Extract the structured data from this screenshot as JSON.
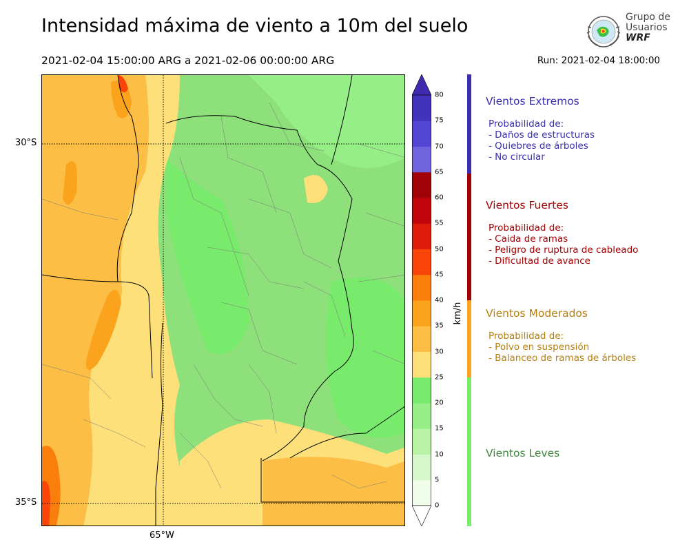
{
  "header": {
    "title": "Intensidad máxima de viento a 10m del suelo",
    "period": "2021-02-04 15:00:00 ARG  a  2021-02-06 00:00:00 ARG",
    "run": "Run: 2021-02-04 18:00:00"
  },
  "logo": {
    "line1": "Grupo de",
    "line2": "Usuarios",
    "line3": "WRF"
  },
  "map": {
    "lat_labels": [
      "30°S",
      "35°S"
    ],
    "lon_labels": [
      "65°W"
    ]
  },
  "colorbar": {
    "unit": "km/h",
    "ticks": [
      "0",
      "5",
      "10",
      "15",
      "20",
      "25",
      "30",
      "35",
      "40",
      "45",
      "50",
      "55",
      "60",
      "65",
      "70",
      "75",
      "80"
    ],
    "colors": [
      "#effdea",
      "#d5f7ca",
      "#b9f3a5",
      "#97ee86",
      "#78ea6c",
      "#fde07a",
      "#fcbe44",
      "#fca31e",
      "#f97e0b",
      "#f9450a",
      "#e01d0a",
      "#c0050a",
      "#a00407",
      "#7064de",
      "#5345d3",
      "#4333bc"
    ],
    "extend_low": "#ffffff",
    "extend_high": "#3f2ab0"
  },
  "categories": [
    {
      "title": "Vientos Extremos",
      "color": "#3b2db0",
      "lines": [
        "Probabilidad de:",
        "- Daños de estructuras",
        "- Quiebres de árboles",
        "- No circular"
      ]
    },
    {
      "title": "Vientos Fuertes",
      "color": "#a40000",
      "lines": [
        "Probabilidad de:",
        "- Caida de ramas",
        "- Peligro de ruptura de cableado",
        "- Dificultad de avance"
      ]
    },
    {
      "title": "Vientos Moderados",
      "color": "#b8800d",
      "lines": [
        "Probabilidad de:",
        "- Polvo en suspensión",
        "- Balanceo de ramas de árboles"
      ]
    },
    {
      "title": "Vientos Leves",
      "color": "#3d8a3a",
      "lines": []
    }
  ]
}
